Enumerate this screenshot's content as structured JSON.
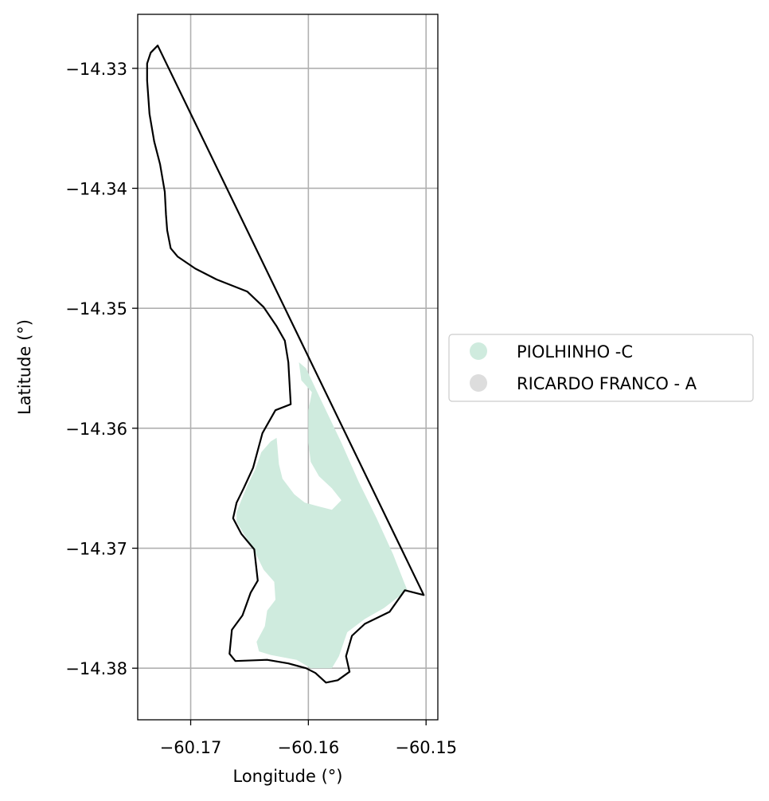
{
  "chart_data": {
    "type": "map",
    "xlabel": "Longitude (°)",
    "ylabel": "Latitude (°)",
    "xlim": [
      -60.1745,
      -60.149
    ],
    "ylim": [
      -14.3843,
      -14.3255
    ],
    "x_ticks": [
      -60.17,
      -60.16,
      -60.15
    ],
    "x_tick_labels": [
      "−60.17",
      "−60.16",
      "−60.15"
    ],
    "y_ticks": [
      -14.33,
      -14.34,
      -14.35,
      -14.36,
      -14.37,
      -14.38
    ],
    "y_tick_labels": [
      "−14.33",
      "−14.34",
      "−14.35",
      "−14.36",
      "−14.37",
      "−14.38"
    ],
    "grid": true,
    "legend_placement": "right",
    "legend": [
      {
        "label": "PIOLHINHO -C",
        "color": "#cfebde"
      },
      {
        "label": "RICARDO FRANCO - A",
        "color": "#dddddd"
      }
    ],
    "boundary_outline": {
      "color": "#000000",
      "coords": [
        [
          -60.1728,
          -14.3281
        ],
        [
          -60.1734,
          -14.3287
        ],
        [
          -60.1737,
          -14.3296
        ],
        [
          -60.1737,
          -14.331
        ],
        [
          -60.1735,
          -14.3338
        ],
        [
          -60.1731,
          -14.3361
        ],
        [
          -60.1726,
          -14.338
        ],
        [
          -60.1722,
          -14.3403
        ],
        [
          -60.1721,
          -14.3422
        ],
        [
          -60.172,
          -14.3435
        ],
        [
          -60.1717,
          -14.345
        ],
        [
          -60.1711,
          -14.3457
        ],
        [
          -60.1696,
          -14.3467
        ],
        [
          -60.1678,
          -14.3476
        ],
        [
          -60.1652,
          -14.3486
        ],
        [
          -60.1638,
          -14.3499
        ],
        [
          -60.1627,
          -14.3515
        ],
        [
          -60.162,
          -14.3527
        ],
        [
          -60.1617,
          -14.3545
        ],
        [
          -60.1615,
          -14.358
        ],
        [
          -60.1628,
          -14.3585
        ],
        [
          -60.1639,
          -14.3604
        ],
        [
          -60.1647,
          -14.3633
        ],
        [
          -60.1655,
          -14.365
        ],
        [
          -60.1661,
          -14.3662
        ],
        [
          -60.1664,
          -14.3675
        ],
        [
          -60.1657,
          -14.3688
        ],
        [
          -60.1646,
          -14.3701
        ],
        [
          -60.1643,
          -14.3727
        ],
        [
          -60.1649,
          -14.3737
        ],
        [
          -60.1656,
          -14.3756
        ],
        [
          -60.1665,
          -14.3768
        ],
        [
          -60.1667,
          -14.3788
        ],
        [
          -60.1662,
          -14.3794
        ],
        [
          -60.1635,
          -14.3793
        ],
        [
          -60.1617,
          -14.3796
        ],
        [
          -60.1602,
          -14.38
        ],
        [
          -60.1594,
          -14.3804
        ],
        [
          -60.1585,
          -14.3812
        ],
        [
          -60.1575,
          -14.381
        ],
        [
          -60.1565,
          -14.3803
        ],
        [
          -60.1568,
          -14.379
        ],
        [
          -60.1563,
          -14.3773
        ],
        [
          -60.1552,
          -14.3763
        ],
        [
          -60.1531,
          -14.3753
        ],
        [
          -60.1518,
          -14.3735
        ],
        [
          -60.1502,
          -14.3739
        ],
        [
          -60.1728,
          -14.3281
        ]
      ]
    },
    "regions": [
      {
        "name": "PIOLHINHO -C",
        "color": "#cfebde",
        "coords": [
          [
            -60.1608,
            -14.3545
          ],
          [
            -60.1602,
            -14.355
          ],
          [
            -60.159,
            -14.3575
          ],
          [
            -60.1572,
            -14.3612
          ],
          [
            -60.1557,
            -14.3645
          ],
          [
            -60.1542,
            -14.3675
          ],
          [
            -60.1528,
            -14.3705
          ],
          [
            -60.1516,
            -14.3735
          ],
          [
            -60.1536,
            -14.375
          ],
          [
            -60.1552,
            -14.3759
          ],
          [
            -60.1567,
            -14.377
          ],
          [
            -60.1574,
            -14.379
          ],
          [
            -60.158,
            -14.38
          ],
          [
            -60.1598,
            -14.38
          ],
          [
            -60.161,
            -14.3793
          ],
          [
            -60.1632,
            -14.3789
          ],
          [
            -60.1642,
            -14.3786
          ],
          [
            -60.1644,
            -14.3778
          ],
          [
            -60.1637,
            -14.3765
          ],
          [
            -60.1635,
            -14.3752
          ],
          [
            -60.1628,
            -14.3743
          ],
          [
            -60.1629,
            -14.3728
          ],
          [
            -60.1638,
            -14.3718
          ],
          [
            -60.1647,
            -14.37
          ],
          [
            -60.1655,
            -14.3688
          ],
          [
            -60.1661,
            -14.3678
          ],
          [
            -60.1661,
            -14.367
          ],
          [
            -60.1657,
            -14.366
          ],
          [
            -60.1652,
            -14.3648
          ],
          [
            -60.1645,
            -14.3634
          ],
          [
            -60.164,
            -14.362
          ],
          [
            -60.1632,
            -14.3611
          ],
          [
            -60.1627,
            -14.3608
          ],
          [
            -60.1625,
            -14.363
          ],
          [
            -60.1622,
            -14.3642
          ],
          [
            -60.1612,
            -14.3655
          ],
          [
            -60.1603,
            -14.3662
          ],
          [
            -60.1592,
            -14.3665
          ],
          [
            -60.158,
            -14.3668
          ],
          [
            -60.1572,
            -14.366
          ],
          [
            -60.158,
            -14.365
          ],
          [
            -60.1591,
            -14.364
          ],
          [
            -60.1598,
            -14.3628
          ],
          [
            -60.16,
            -14.3612
          ],
          [
            -60.16,
            -14.3585
          ],
          [
            -60.1597,
            -14.357
          ],
          [
            -60.1606,
            -14.356
          ],
          [
            -60.1608,
            -14.3545
          ]
        ]
      }
    ]
  }
}
